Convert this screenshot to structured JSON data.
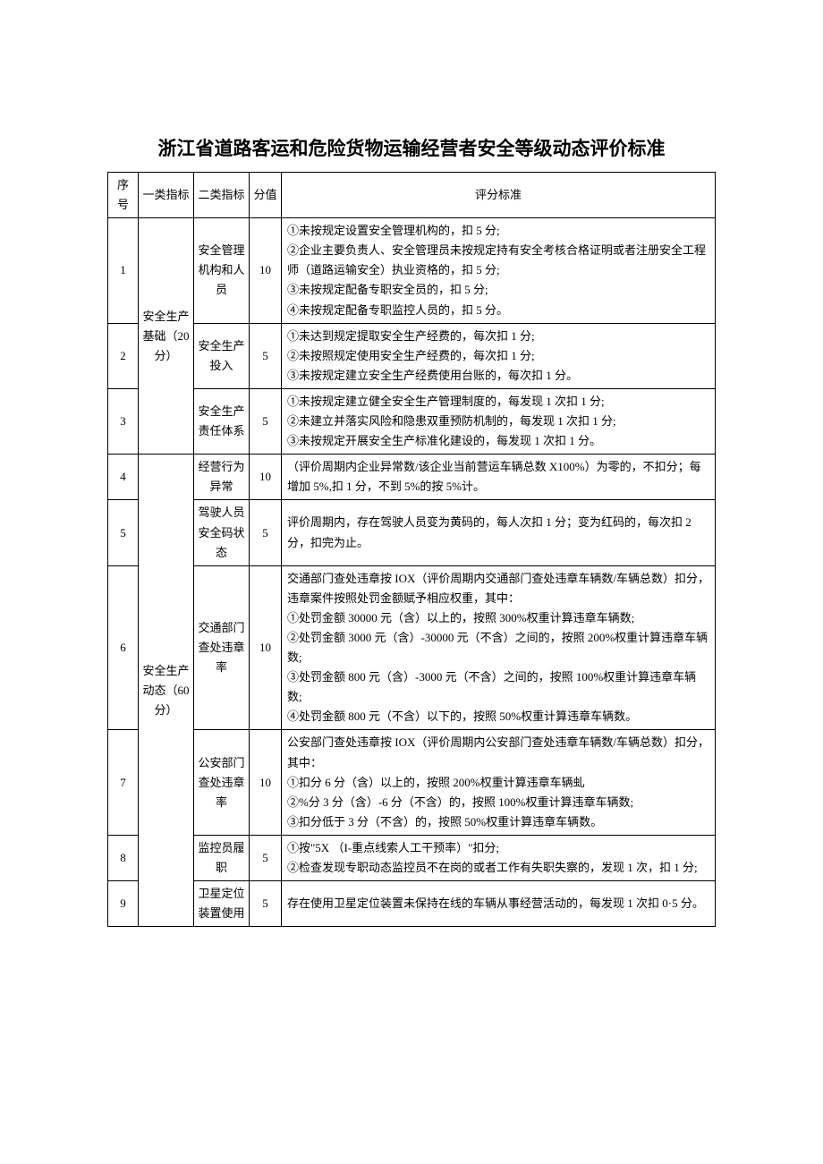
{
  "title": "浙江省道路客运和危险货物运输经营者安全等级动态评价标准",
  "headers": {
    "seq": "序号",
    "cat1": "一类指标",
    "cat2": "二类指标",
    "score": "分值",
    "criteria": "评分标准"
  },
  "category1": {
    "group1": "安全生产基础（20分）",
    "group2": "安全生产动态（60分）"
  },
  "rows": [
    {
      "seq": "1",
      "cat2": "安全管理机构和人员",
      "score": "10",
      "criteria": "①未按规定设置安全管理机构的，扣 5 分;\n②企业主要负责人、安全管理员未按规定持有安全考核合格证明或者注册安全工程师（道路运输安全）执业资格的，扣 5 分;\n③未按规定配备专职安全员的，扣 5 分;\n④未按规定配备专职监控人员的，扣 5 分。"
    },
    {
      "seq": "2",
      "cat2": "安全生产投入",
      "score": "5",
      "criteria": "①未达到规定提取安全生产经费的，每次扣 1 分;\n②未按照规定使用安全生产经费的，每次扣 1 分;\n③未按规定建立安全生产经费使用台账的，每次扣 1 分。"
    },
    {
      "seq": "3",
      "cat2": "安全生产责任体系",
      "score": "5",
      "criteria": "①未按规定建立健全安全生产管理制度的，每发现 1 次扣 1 分;\n②未建立并落实风险和隐患双重预防机制的，每发现 1 次扣 1 分;\n③未按规定开展安全生产标准化建设的，每发现 1 次扣 1 分。"
    },
    {
      "seq": "4",
      "cat2": "经营行为异常",
      "score": "10",
      "criteria": "（评价周期内企业异常数/该企业当前营运车辆总数 X100%）为零的，不扣分；每增加 5%,扣 1 分，不到 5%的按 5%计。"
    },
    {
      "seq": "5",
      "cat2": "驾驶人员安全码状态",
      "score": "5",
      "criteria": "评价周期内，存在驾驶人员变为黄码的，每人次扣 1 分；变为红码的，每次扣 2 分，扣完为止。"
    },
    {
      "seq": "6",
      "cat2": "交通部门查处违章率",
      "score": "10",
      "criteria": "交通部门查处违章按 IOX（评价周期内交通部门查处违章车辆数/车辆总数）扣分，违章案件按照处罚金额赋予相应权重，其中：\n①处罚金额 30000 元（含）以上的，按照 300%权重计算违章车辆数;\n②处罚金额 3000 元（含）-30000 元（不含）之间的，按照 200%权重计算违章车辆数;\n③处罚金额 800 元（含）-3000 元（不含）之间的，按照 100%权重计算违章车辆数;\n④处罚金额 800 元（不含）以下的，按照 50%权重计算违章车辆数。"
    },
    {
      "seq": "7",
      "cat2": "公安部门查处违章率",
      "score": "10",
      "criteria": "公安部门查处违章按 IOX（评价周期内公安部门查处违章车辆数/车辆总数）扣分，其中：\n①扣分 6 分（含）以上的，按照 200%权重计算违章车辆虬\n②%分 3 分（含）-6 分（不含）的，按照 100%权重计算违章车辆数;\n③扣分低于 3 分（不含）的，按照 50%权重计算违章车辆数。"
    },
    {
      "seq": "8",
      "cat2": "监控员履职",
      "score": "5",
      "criteria": "①按\"5X （I-重点线索人工干预率）\"扣分;\n②检查发现专职动态监控员不在岗的或者工作有失职失察的，发现 1 次，扣 1 分;"
    },
    {
      "seq": "9",
      "cat2": "卫星定位装置使用",
      "score": "5",
      "criteria": "存在使用卫星定位装置未保持在线的车辆从事经营活动的，每发现 1 次扣 0·5 分。"
    }
  ]
}
